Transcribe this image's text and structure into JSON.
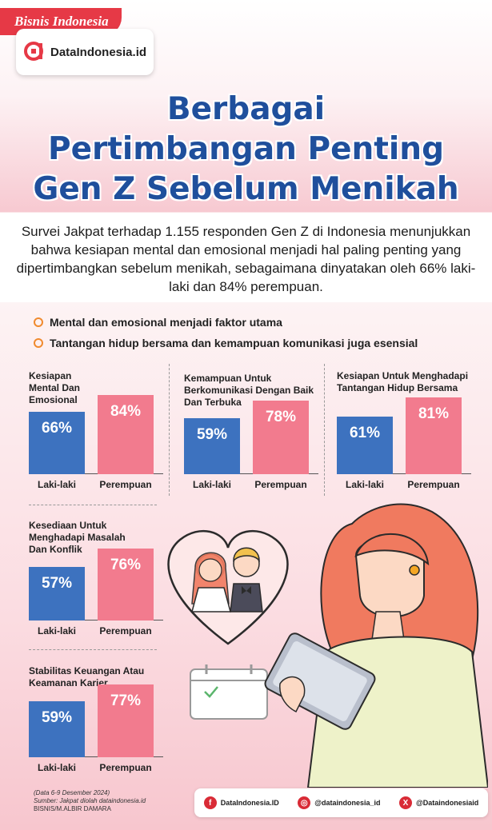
{
  "brand": {
    "bisnis": "Bisnis Indonesia",
    "datain": "DataIndonesia.id"
  },
  "title_lines": [
    "Berbagai",
    "Pertimbangan Penting",
    "Gen Z Sebelum Menikah"
  ],
  "intro": "Survei Jakpat terhadap 1.155 responden Gen Z di Indonesia menunjukkan bahwa kesiapan mental dan emosional menjadi hal paling penting yang dipertimbangkan sebelum menikah, sebagaimana dinyatakan oleh 66% laki-laki dan 84% perempuan.",
  "bullets": [
    "Mental dan emosional menjadi faktor utama",
    "Tantangan hidup bersama dan kemampuan komunikasi juga esensial"
  ],
  "chart_data": [
    {
      "type": "bar",
      "title": "Kesiapan\nMental Dan\nEmosional",
      "categories": [
        "Laki-laki",
        "Perempuan"
      ],
      "values": [
        66,
        84
      ],
      "labels": [
        "66%",
        "84%"
      ],
      "colors": [
        "#3d72bf",
        "#f27b8e"
      ]
    },
    {
      "type": "bar",
      "title": "Kemampuan Untuk\nBerkomunikasi Dengan Baik\nDan Terbuka",
      "categories": [
        "Laki-laki",
        "Perempuan"
      ],
      "values": [
        59,
        78
      ],
      "labels": [
        "59%",
        "78%"
      ],
      "colors": [
        "#3d72bf",
        "#f27b8e"
      ]
    },
    {
      "type": "bar",
      "title": "Kesiapan Untuk Menghadapi\nTantangan Hidup Bersama",
      "categories": [
        "Laki-laki",
        "Perempuan"
      ],
      "values": [
        61,
        81
      ],
      "labels": [
        "61%",
        "81%"
      ],
      "colors": [
        "#3d72bf",
        "#f27b8e"
      ]
    },
    {
      "type": "bar",
      "title": "Kesediaan Untuk\nMenghadapi Masalah\nDan Konflik",
      "categories": [
        "Laki-laki",
        "Perempuan"
      ],
      "values": [
        57,
        76
      ],
      "labels": [
        "57%",
        "76%"
      ],
      "colors": [
        "#3d72bf",
        "#f27b8e"
      ]
    },
    {
      "type": "bar",
      "title": "Stabilitas Keuangan Atau\nKeamanan Karier",
      "categories": [
        "Laki-laki",
        "Perempuan"
      ],
      "values": [
        59,
        77
      ],
      "labels": [
        "59%",
        "77%"
      ],
      "colors": [
        "#3d72bf",
        "#f27b8e"
      ]
    }
  ],
  "source": {
    "date": "(Data 6-9 Desember 2024)",
    "source_line": "Sumber: Jakpat diolah dataindonesia.id",
    "credit": "BISNIS/M.ALBIR DAMARA"
  },
  "social": {
    "facebook": "DataIndonesia.ID",
    "instagram": "@dataindonesia_id",
    "x": "@Dataindonesiaid"
  },
  "icons": {
    "facebook": "facebook-icon",
    "instagram": "instagram-icon",
    "x": "x-icon"
  }
}
